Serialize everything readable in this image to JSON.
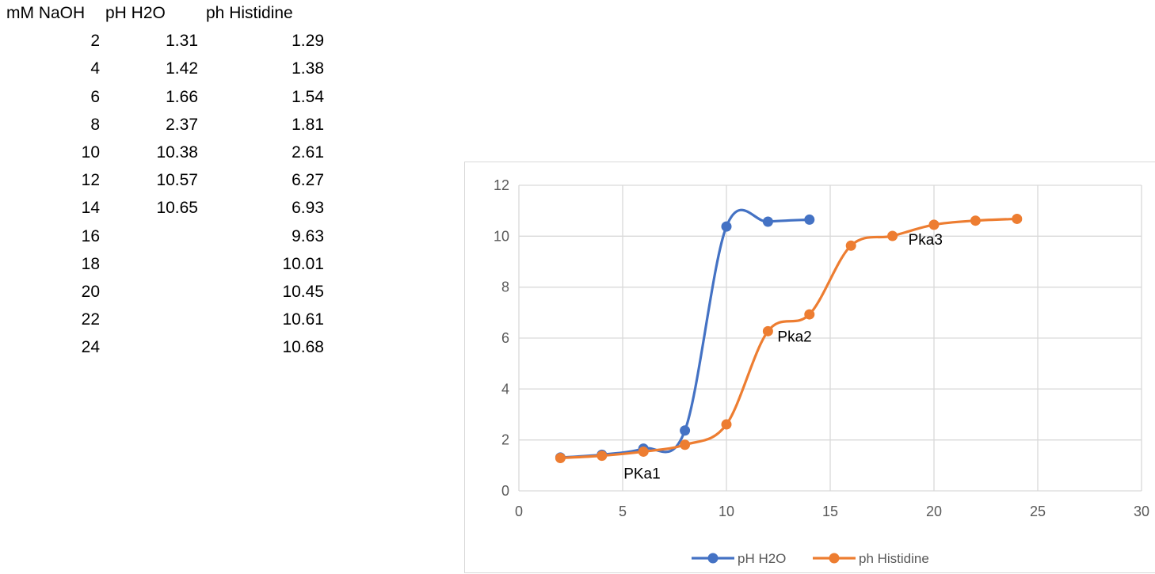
{
  "table": {
    "headers": [
      "mM NaOH",
      "pH H2O",
      "ph Histidine"
    ],
    "rows": [
      [
        "2",
        "1.31",
        "1.29"
      ],
      [
        "4",
        "1.42",
        "1.38"
      ],
      [
        "6",
        "1.66",
        "1.54"
      ],
      [
        "8",
        "2.37",
        "1.81"
      ],
      [
        "10",
        "10.38",
        "2.61"
      ],
      [
        "12",
        "10.57",
        "6.27"
      ],
      [
        "14",
        "10.65",
        "6.93"
      ],
      [
        "16",
        "",
        "9.63"
      ],
      [
        "18",
        "",
        "10.01"
      ],
      [
        "20",
        "",
        "10.45"
      ],
      [
        "22",
        "",
        "10.61"
      ],
      [
        "24",
        "",
        "10.68"
      ]
    ]
  },
  "chart_data": {
    "type": "scatter",
    "title": "",
    "xlabel": "",
    "ylabel": "",
    "xlim": [
      0,
      30
    ],
    "ylim": [
      0,
      12
    ],
    "xticks": [
      0,
      5,
      10,
      15,
      20,
      25,
      30
    ],
    "yticks": [
      0,
      2,
      4,
      6,
      8,
      10,
      12
    ],
    "grid": true,
    "smooth_lines": true,
    "markers": true,
    "legend_position": "bottom",
    "series": [
      {
        "name": "pH H2O",
        "color": "#4472c4",
        "x": [
          2,
          4,
          6,
          8,
          10,
          12,
          14
        ],
        "y": [
          1.31,
          1.42,
          1.66,
          2.37,
          10.38,
          10.57,
          10.65
        ]
      },
      {
        "name": "ph Histidine",
        "color": "#ed7d31",
        "x": [
          2,
          4,
          6,
          8,
          10,
          12,
          14,
          16,
          18,
          20,
          22,
          24
        ],
        "y": [
          1.29,
          1.38,
          1.54,
          1.81,
          2.61,
          6.27,
          6.93,
          9.63,
          10.01,
          10.45,
          10.61,
          10.68
        ]
      }
    ],
    "annotations": [
      {
        "text": "PKa1",
        "x": 6,
        "y": 1.54
      },
      {
        "text": "Pka2",
        "x": 12,
        "y": 6.27
      },
      {
        "text": "Pka3",
        "x": 18,
        "y": 10.01
      }
    ]
  },
  "colors": {
    "grid": "#d9d9d9",
    "tick_text": "#595959",
    "frame": "#d9d9d9"
  }
}
